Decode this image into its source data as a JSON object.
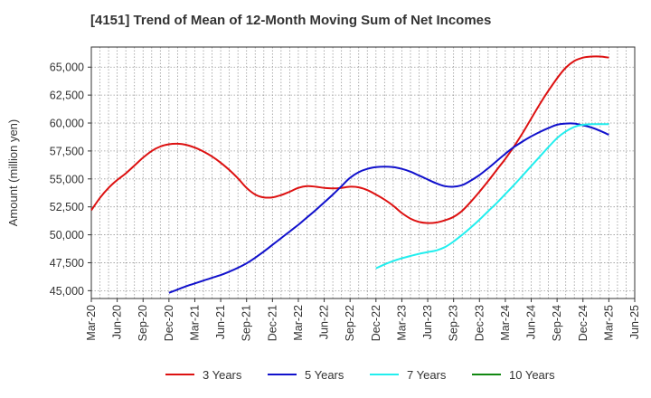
{
  "chart_data": {
    "type": "line",
    "title": "[4151]  Trend of Mean of 12-Month Moving Sum of Net Incomes",
    "xlabel": "",
    "ylabel": "Amount (million yen)",
    "ylim": [
      44300,
      66800
    ],
    "yticks": [
      45000,
      47500,
      50000,
      52500,
      55000,
      57500,
      60000,
      62500,
      65000
    ],
    "ytick_labels": [
      "45,000",
      "47,500",
      "50,000",
      "52,500",
      "55,000",
      "57,500",
      "60,000",
      "62,500",
      "65,000"
    ],
    "xlim": [
      "2020-03",
      "2025-06"
    ],
    "xticks": [
      "2020-03",
      "2020-06",
      "2020-09",
      "2020-12",
      "2021-03",
      "2021-06",
      "2021-09",
      "2021-12",
      "2022-03",
      "2022-06",
      "2022-09",
      "2022-12",
      "2023-03",
      "2023-06",
      "2023-09",
      "2023-12",
      "2024-03",
      "2024-06",
      "2024-09",
      "2024-12",
      "2025-03",
      "2025-06"
    ],
    "xtick_labels": [
      "Mar-20",
      "Jun-20",
      "Sep-20",
      "Dec-20",
      "Mar-21",
      "Jun-21",
      "Sep-21",
      "Dec-21",
      "Mar-22",
      "Jun-22",
      "Sep-22",
      "Dec-22",
      "Mar-23",
      "Jun-23",
      "Sep-23",
      "Dec-23",
      "Mar-24",
      "Jun-24",
      "Sep-24",
      "Dec-24",
      "Mar-25",
      "Jun-25"
    ],
    "grid": true,
    "legend_position": "bottom",
    "series": [
      {
        "name": "3 Years",
        "color": "#dd1111",
        "points": [
          [
            "2020-03",
            52200
          ],
          [
            "2020-04",
            53300
          ],
          [
            "2020-05",
            54200
          ],
          [
            "2020-06",
            54900
          ],
          [
            "2020-07",
            55500
          ],
          [
            "2020-08",
            56200
          ],
          [
            "2020-09",
            56900
          ],
          [
            "2020-10",
            57500
          ],
          [
            "2020-11",
            57900
          ],
          [
            "2020-12",
            58100
          ],
          [
            "2021-01",
            58150
          ],
          [
            "2021-02",
            58050
          ],
          [
            "2021-03",
            57800
          ],
          [
            "2021-04",
            57450
          ],
          [
            "2021-05",
            57000
          ],
          [
            "2021-06",
            56450
          ],
          [
            "2021-07",
            55800
          ],
          [
            "2021-08",
            55050
          ],
          [
            "2021-09",
            54200
          ],
          [
            "2021-10",
            53600
          ],
          [
            "2021-11",
            53350
          ],
          [
            "2021-12",
            53350
          ],
          [
            "2022-01",
            53550
          ],
          [
            "2022-02",
            53850
          ],
          [
            "2022-03",
            54200
          ],
          [
            "2022-04",
            54350
          ],
          [
            "2022-05",
            54300
          ],
          [
            "2022-06",
            54200
          ],
          [
            "2022-07",
            54150
          ],
          [
            "2022-08",
            54200
          ],
          [
            "2022-09",
            54300
          ],
          [
            "2022-10",
            54250
          ],
          [
            "2022-11",
            54000
          ],
          [
            "2022-12",
            53600
          ],
          [
            "2023-01",
            53150
          ],
          [
            "2023-02",
            52600
          ],
          [
            "2023-03",
            51950
          ],
          [
            "2023-04",
            51450
          ],
          [
            "2023-05",
            51150
          ],
          [
            "2023-06",
            51050
          ],
          [
            "2023-07",
            51100
          ],
          [
            "2023-08",
            51300
          ],
          [
            "2023-09",
            51600
          ],
          [
            "2023-10",
            52150
          ],
          [
            "2023-11",
            52950
          ],
          [
            "2023-12",
            53850
          ],
          [
            "2024-01",
            54800
          ],
          [
            "2024-02",
            55800
          ],
          [
            "2024-03",
            56800
          ],
          [
            "2024-04",
            57900
          ],
          [
            "2024-05",
            59100
          ],
          [
            "2024-06",
            60400
          ],
          [
            "2024-07",
            61700
          ],
          [
            "2024-08",
            62900
          ],
          [
            "2024-09",
            64000
          ],
          [
            "2024-10",
            64950
          ],
          [
            "2024-11",
            65550
          ],
          [
            "2024-12",
            65850
          ],
          [
            "2025-01",
            65950
          ],
          [
            "2025-02",
            65950
          ],
          [
            "2025-03",
            65850
          ]
        ]
      },
      {
        "name": "5 Years",
        "color": "#1111cc",
        "points": [
          [
            "2020-12",
            44800
          ],
          [
            "2021-01",
            45100
          ],
          [
            "2021-02",
            45400
          ],
          [
            "2021-03",
            45650
          ],
          [
            "2021-04",
            45900
          ],
          [
            "2021-05",
            46150
          ],
          [
            "2021-06",
            46400
          ],
          [
            "2021-07",
            46700
          ],
          [
            "2021-08",
            47050
          ],
          [
            "2021-09",
            47450
          ],
          [
            "2021-10",
            47950
          ],
          [
            "2021-11",
            48500
          ],
          [
            "2021-12",
            49100
          ],
          [
            "2022-01",
            49700
          ],
          [
            "2022-02",
            50300
          ],
          [
            "2022-03",
            50900
          ],
          [
            "2022-04",
            51550
          ],
          [
            "2022-05",
            52200
          ],
          [
            "2022-06",
            52900
          ],
          [
            "2022-07",
            53600
          ],
          [
            "2022-08",
            54350
          ],
          [
            "2022-09",
            55100
          ],
          [
            "2022-10",
            55600
          ],
          [
            "2022-11",
            55900
          ],
          [
            "2022-12",
            56050
          ],
          [
            "2023-01",
            56100
          ],
          [
            "2023-02",
            56050
          ],
          [
            "2023-03",
            55900
          ],
          [
            "2023-04",
            55650
          ],
          [
            "2023-05",
            55300
          ],
          [
            "2023-06",
            54950
          ],
          [
            "2023-07",
            54600
          ],
          [
            "2023-08",
            54350
          ],
          [
            "2023-09",
            54300
          ],
          [
            "2023-10",
            54450
          ],
          [
            "2023-11",
            54850
          ],
          [
            "2023-12",
            55350
          ],
          [
            "2024-01",
            55950
          ],
          [
            "2024-02",
            56600
          ],
          [
            "2024-03",
            57250
          ],
          [
            "2024-04",
            57850
          ],
          [
            "2024-05",
            58350
          ],
          [
            "2024-06",
            58800
          ],
          [
            "2024-07",
            59200
          ],
          [
            "2024-08",
            59550
          ],
          [
            "2024-09",
            59850
          ],
          [
            "2024-10",
            59950
          ],
          [
            "2024-11",
            59950
          ],
          [
            "2024-12",
            59800
          ],
          [
            "2025-01",
            59600
          ],
          [
            "2025-02",
            59300
          ],
          [
            "2025-03",
            58950
          ]
        ]
      },
      {
        "name": "7 Years",
        "color": "#22eeee",
        "points": [
          [
            "2022-12",
            47000
          ],
          [
            "2023-01",
            47350
          ],
          [
            "2023-02",
            47650
          ],
          [
            "2023-03",
            47900
          ],
          [
            "2023-04",
            48100
          ],
          [
            "2023-05",
            48300
          ],
          [
            "2023-06",
            48450
          ],
          [
            "2023-07",
            48600
          ],
          [
            "2023-08",
            48900
          ],
          [
            "2023-09",
            49400
          ],
          [
            "2023-10",
            50000
          ],
          [
            "2023-11",
            50650
          ],
          [
            "2023-12",
            51350
          ],
          [
            "2024-01",
            52100
          ],
          [
            "2024-02",
            52850
          ],
          [
            "2024-03",
            53650
          ],
          [
            "2024-04",
            54450
          ],
          [
            "2024-05",
            55300
          ],
          [
            "2024-06",
            56150
          ],
          [
            "2024-07",
            57000
          ],
          [
            "2024-08",
            57850
          ],
          [
            "2024-09",
            58650
          ],
          [
            "2024-10",
            59250
          ],
          [
            "2024-11",
            59650
          ],
          [
            "2024-12",
            59850
          ],
          [
            "2025-01",
            59900
          ],
          [
            "2025-02",
            59900
          ],
          [
            "2025-03",
            59900
          ]
        ]
      },
      {
        "name": "10 Years",
        "color": "#118811",
        "points": []
      }
    ]
  }
}
